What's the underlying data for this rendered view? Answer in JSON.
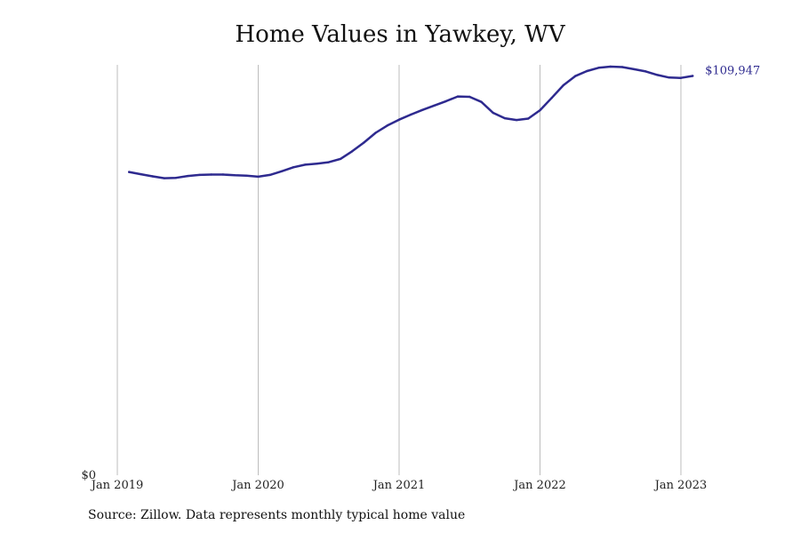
{
  "chart_data": {
    "type": "line",
    "title": "Home Values in Yawkey, WV",
    "xlabel": "",
    "ylabel": "",
    "x_ticks": [
      "Jan 2019",
      "Jan 2020",
      "Jan 2021",
      "Jan 2022",
      "Jan 2023"
    ],
    "y_ticks": [
      "$0"
    ],
    "ylim": [
      0,
      113000
    ],
    "grid": "vertical",
    "legend": "none",
    "line_color": "#2e2a8f",
    "end_label": "$109,947",
    "series": [
      {
        "x": [
          "2019-02",
          "2019-03",
          "2019-04",
          "2019-05",
          "2019-06",
          "2019-07",
          "2019-08",
          "2019-09",
          "2019-10",
          "2019-11",
          "2019-12",
          "2020-01",
          "2020-02",
          "2020-03",
          "2020-04",
          "2020-05",
          "2020-06",
          "2020-07",
          "2020-08",
          "2020-09",
          "2020-10",
          "2020-11",
          "2020-12",
          "2021-01",
          "2021-02",
          "2021-03",
          "2021-04",
          "2021-05",
          "2021-06",
          "2021-07",
          "2021-08",
          "2021-09",
          "2021-10",
          "2021-11",
          "2021-12",
          "2022-01",
          "2022-02",
          "2022-03",
          "2022-04",
          "2022-05",
          "2022-06",
          "2022-07",
          "2022-08",
          "2022-09",
          "2022-10",
          "2022-11",
          "2022-12",
          "2023-01",
          "2023-02"
        ],
        "values": [
          83500,
          82900,
          82300,
          81800,
          81900,
          82400,
          82700,
          82800,
          82800,
          82600,
          82500,
          82200,
          82700,
          83700,
          84800,
          85500,
          85800,
          86200,
          87100,
          89200,
          91600,
          94300,
          96300,
          97900,
          99300,
          100600,
          101800,
          103000,
          104300,
          104200,
          102800,
          99800,
          98300,
          97800,
          98200,
          100500,
          103900,
          107400,
          109900,
          111300,
          112200,
          112500,
          112400,
          111800,
          111200,
          110200,
          109500,
          109400,
          109947
        ]
      }
    ]
  },
  "source_text": "Source: Zillow. Data represents monthly typical home value"
}
